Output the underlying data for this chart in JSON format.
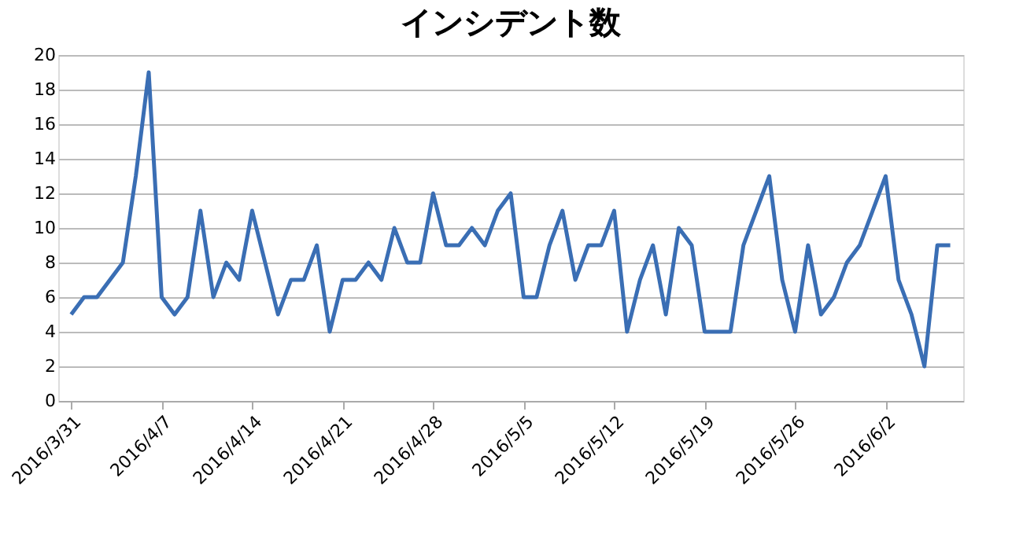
{
  "chart_data": {
    "type": "line",
    "title": "インシデント数",
    "x": [
      "2016-03-31",
      "2016-04-01",
      "2016-04-02",
      "2016-04-03",
      "2016-04-04",
      "2016-04-05",
      "2016-04-06",
      "2016-04-07",
      "2016-04-08",
      "2016-04-09",
      "2016-04-10",
      "2016-04-11",
      "2016-04-12",
      "2016-04-13",
      "2016-04-14",
      "2016-04-15",
      "2016-04-16",
      "2016-04-17",
      "2016-04-18",
      "2016-04-19",
      "2016-04-20",
      "2016-04-21",
      "2016-04-22",
      "2016-04-23",
      "2016-04-24",
      "2016-04-25",
      "2016-04-26",
      "2016-04-27",
      "2016-04-28",
      "2016-04-29",
      "2016-04-30",
      "2016-05-01",
      "2016-05-02",
      "2016-05-03",
      "2016-05-04",
      "2016-05-05",
      "2016-05-06",
      "2016-05-07",
      "2016-05-08",
      "2016-05-09",
      "2016-05-10",
      "2016-05-11",
      "2016-05-12",
      "2016-05-13",
      "2016-05-14",
      "2016-05-15",
      "2016-05-16",
      "2016-05-17",
      "2016-05-18",
      "2016-05-19",
      "2016-05-20",
      "2016-05-21",
      "2016-05-22",
      "2016-05-23",
      "2016-05-24",
      "2016-05-25",
      "2016-05-26",
      "2016-05-27",
      "2016-05-28",
      "2016-05-29",
      "2016-05-30",
      "2016-05-31",
      "2016-06-01",
      "2016-06-02",
      "2016-06-03",
      "2016-06-04",
      "2016-06-05",
      "2016-06-06",
      "2016-06-07"
    ],
    "series": [
      {
        "color": "#3a6eb4",
        "values": [
          5,
          6,
          6,
          7,
          8,
          13,
          19,
          6,
          5,
          6,
          11,
          6,
          8,
          7,
          11,
          8,
          5,
          7,
          7,
          9,
          4,
          7,
          7,
          8,
          7,
          10,
          8,
          8,
          12,
          9,
          9,
          10,
          9,
          11,
          12,
          6,
          6,
          9,
          11,
          7,
          9,
          9,
          11,
          4,
          7,
          9,
          5,
          10,
          9,
          4,
          4,
          4,
          9,
          11,
          13,
          7,
          4,
          9,
          5,
          6,
          8,
          9,
          11,
          13,
          7,
          5,
          2,
          9,
          9
        ]
      }
    ],
    "xlim": [
      "2016-03-30",
      "2016-06-08"
    ],
    "xticks": [
      {
        "value": "2016-03-31",
        "label": "2016/3/31"
      },
      {
        "value": "2016-04-07",
        "label": "2016/4/7"
      },
      {
        "value": "2016-04-14",
        "label": "2016/4/14"
      },
      {
        "value": "2016-04-21",
        "label": "2016/4/21"
      },
      {
        "value": "2016-04-28",
        "label": "2016/4/28"
      },
      {
        "value": "2016-05-05",
        "label": "2016/5/5"
      },
      {
        "value": "2016-05-12",
        "label": "2016/5/12"
      },
      {
        "value": "2016-05-19",
        "label": "2016/5/19"
      },
      {
        "value": "2016-05-26",
        "label": "2016/5/26"
      },
      {
        "value": "2016-06-02",
        "label": "2016/6/2"
      }
    ],
    "ylim": [
      0,
      20
    ],
    "yticks": [
      0,
      2,
      4,
      6,
      8,
      10,
      12,
      14,
      16,
      18,
      20
    ],
    "grid": "y",
    "marker": "none",
    "line_style": "solid"
  }
}
